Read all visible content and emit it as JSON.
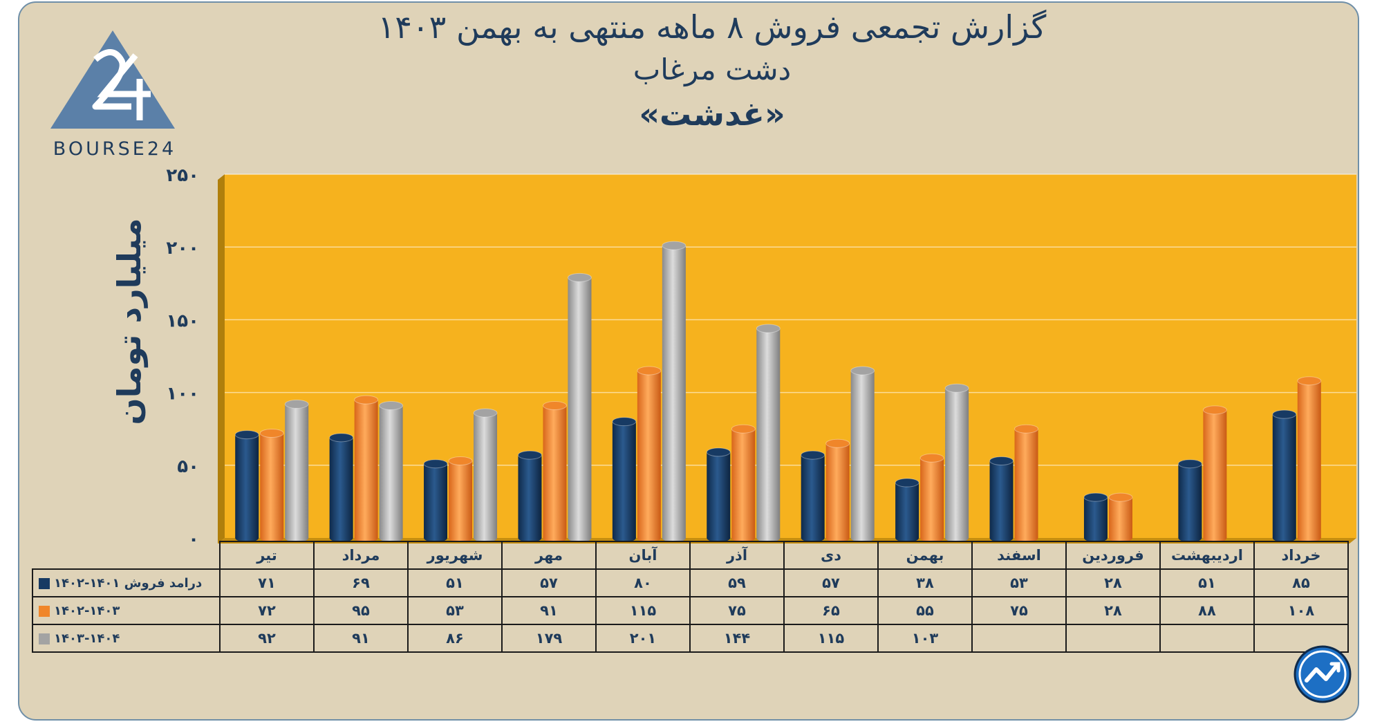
{
  "title": {
    "line1": "گزارش تجمعی فروش ۸ ماهه منتهی به بهمن ۱۴۰۳",
    "line2": "دشت مرغاب",
    "line3": "«غدشت»"
  },
  "logo_text": "BOURSE24",
  "chart_data": {
    "type": "bar",
    "ylabel": "میلیارد تومان",
    "ylim": [
      0,
      250
    ],
    "yticks": [
      0,
      50,
      100,
      150,
      200,
      250
    ],
    "ytick_labels": [
      "۰",
      "۵۰",
      "۱۰۰",
      "۱۵۰",
      "۲۰۰",
      "۲۵۰"
    ],
    "categories": [
      "تیر",
      "مرداد",
      "شهریور",
      "مهر",
      "آبان",
      "آذر",
      "دی",
      "بهمن",
      "اسفند",
      "فروردین",
      "اردیبهشت",
      "خرداد"
    ],
    "series": [
      {
        "name": "درامد فروش ۱۴۰۱-۱۴۰۲",
        "color": "#173a63",
        "values": [
          71,
          69,
          51,
          57,
          80,
          59,
          57,
          38,
          53,
          28,
          51,
          85
        ],
        "labels": [
          "۷۱",
          "۶۹",
          "۵۱",
          "۵۷",
          "۸۰",
          "۵۹",
          "۵۷",
          "۳۸",
          "۵۳",
          "۲۸",
          "۵۱",
          "۸۵"
        ]
      },
      {
        "name": "۱۴۰۲-۱۴۰۳",
        "color": "#f0862a",
        "values": [
          72,
          95,
          53,
          91,
          115,
          75,
          65,
          55,
          75,
          28,
          88,
          108
        ],
        "labels": [
          "۷۲",
          "۹۵",
          "۵۳",
          "۹۱",
          "۱۱۵",
          "۷۵",
          "۶۵",
          "۵۵",
          "۷۵",
          "۲۸",
          "۸۸",
          "۱۰۸"
        ]
      },
      {
        "name": "۱۴۰۳-۱۴۰۴",
        "color": "#a3a3a3",
        "values": [
          92,
          91,
          86,
          179,
          201,
          144,
          115,
          103,
          null,
          null,
          null,
          null
        ],
        "labels": [
          "۹۲",
          "۹۱",
          "۸۶",
          "۱۷۹",
          "۲۰۱",
          "۱۴۴",
          "۱۱۵",
          "۱۰۳",
          "",
          "",
          "",
          ""
        ]
      }
    ]
  }
}
